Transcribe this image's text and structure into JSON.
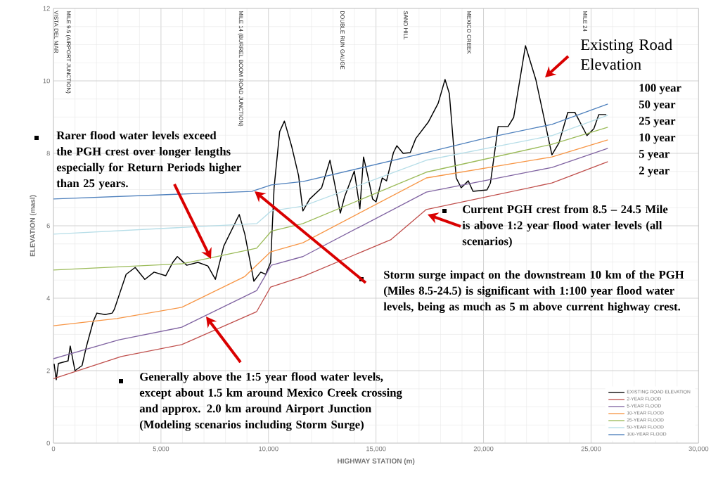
{
  "chart_data": {
    "type": "line",
    "xlabel": "HIGHWAY STATION (m)",
    "ylabel": "ELEVATION (masl)",
    "xlim": [
      0,
      30000
    ],
    "ylim": [
      0,
      12
    ],
    "xticks": [
      0,
      {
        "value": 5000,
        "label": "5,000"
      },
      {
        "value": 10000,
        "label": "10,000"
      },
      {
        "value": 15000,
        "label": "15,000"
      },
      {
        "value": 20000,
        "label": "20,000"
      },
      {
        "value": 25000,
        "label": "25,000"
      },
      {
        "value": 30000,
        "label": "30,000"
      }
    ],
    "yticks": [
      0,
      2,
      4,
      6,
      8,
      10,
      12
    ],
    "grid": true,
    "legend": "bottom right",
    "series": [
      {
        "name": "EXISTING ROAD ELEVATION",
        "color": "#000000",
        "x": [
          30,
          130,
          230,
          680,
          780,
          1000,
          1330,
          1530,
          1850,
          2020,
          2400,
          2730,
          2830,
          3050,
          3380,
          3800,
          4250,
          4680,
          5220,
          5550,
          5760,
          6200,
          6720,
          7180,
          7530,
          7920,
          8640,
          8900,
          9320,
          9640,
          9870,
          10100,
          10260,
          10520,
          10740,
          11070,
          11400,
          11600,
          11920,
          12470,
          12860,
          13180,
          13340,
          13540,
          13990,
          14250,
          14420,
          14640,
          14840,
          15000,
          15290,
          15490,
          15810,
          15970,
          16260,
          16590,
          16850,
          17440,
          17890,
          18210,
          18410,
          18730,
          18960,
          19290,
          19510,
          20160,
          20320,
          20680,
          21140,
          21400,
          21950,
          22430,
          23180,
          23510,
          23920,
          24250,
          24810,
          25130,
          25360,
          25710
        ],
        "values": [
          2.19,
          1.75,
          2.2,
          2.27,
          2.68,
          2.0,
          2.14,
          2.66,
          3.36,
          3.59,
          3.55,
          3.59,
          3.69,
          4.08,
          4.66,
          4.85,
          4.52,
          4.72,
          4.62,
          4.99,
          5.15,
          4.91,
          4.99,
          4.89,
          4.52,
          5.44,
          6.31,
          5.77,
          4.47,
          4.72,
          4.66,
          4.99,
          7.05,
          8.6,
          8.89,
          8.21,
          7.38,
          6.41,
          6.74,
          7.05,
          7.81,
          6.85,
          6.35,
          6.8,
          7.51,
          6.47,
          7.9,
          7.32,
          6.74,
          6.66,
          7.32,
          7.24,
          8.02,
          8.21,
          8.0,
          8.02,
          8.41,
          8.87,
          9.38,
          10.04,
          9.65,
          7.32,
          7.05,
          7.24,
          6.95,
          6.99,
          7.18,
          8.74,
          8.74,
          8.99,
          10.97,
          10.04,
          7.96,
          8.29,
          9.13,
          9.13,
          8.49,
          8.68,
          9.07,
          9.07
        ]
      },
      {
        "name": "2-YEAR FLOOD",
        "color": "#c0504d",
        "x": [
          0,
          3150,
          5970,
          9450,
          10100,
          11600,
          15700,
          17340,
          23180,
          25780
        ],
        "values": [
          1.78,
          2.39,
          2.72,
          3.63,
          4.31,
          4.6,
          5.62,
          6.45,
          7.18,
          7.77
        ]
      },
      {
        "name": "5-YEAR FLOOD",
        "color": "#8064a2",
        "x": [
          0,
          3050,
          5970,
          9450,
          10130,
          11600,
          17340,
          23180,
          25780
        ],
        "values": [
          2.33,
          2.85,
          3.2,
          4.21,
          4.91,
          5.15,
          6.93,
          7.61,
          8.14
        ]
      },
      {
        "name": "10-YEAR FLOOD",
        "color": "#f79646",
        "x": [
          0,
          2950,
          5970,
          8900,
          10100,
          11600,
          17340,
          23180,
          25780
        ],
        "values": [
          3.24,
          3.44,
          3.75,
          4.6,
          5.28,
          5.53,
          7.32,
          7.9,
          8.37
        ]
      },
      {
        "name": "25-YEAR FLOOD",
        "color": "#9bbb59",
        "x": [
          0,
          5970,
          9450,
          10130,
          11600,
          17340,
          23180,
          25780
        ],
        "values": [
          4.78,
          4.95,
          5.38,
          5.85,
          6.06,
          7.48,
          8.25,
          8.72
        ]
      },
      {
        "name": "50-YEAR FLOOD",
        "color": "#b7dee8",
        "x": [
          0,
          9450,
          10130,
          11600,
          17340,
          23180,
          25780
        ],
        "values": [
          5.77,
          6.06,
          6.41,
          6.54,
          7.81,
          8.49,
          9.05
        ]
      },
      {
        "name": "100-YEAR FLOOD",
        "color": "#4f81bd",
        "x": [
          0,
          9220,
          10130,
          11600,
          17340,
          20030,
          23180,
          25780
        ],
        "values": [
          6.74,
          6.95,
          7.13,
          7.22,
          8.02,
          8.41,
          8.8,
          9.36
        ]
      }
    ],
    "annotations": [
      "Existing Road Elevation",
      "100 year",
      "50 year",
      "25 year",
      "10 year",
      "5 year",
      "2 year",
      "Rarer flood water levels exceed the PGH crest over longer lengths especially for Return Periods higher than 25 years.",
      "Current PGH crest from 8.5 – 24.5 Mile is above 1:2 year flood water levels (all scenarios)",
      "Storm surge impact on the  downstream 10 km of the PGH (Miles 8.5-24.5) is significant with 1:100 year flood water levels, being as much as 5 m above current highway crest.",
      "Generally above the 1:5 year flood water levels, except about 1.5 km around Mexico Creek crossing and approx. 2.0 km around Airport Junction (Modeling scenarios including Storm Surge)",
      "VISTA DEL MAR",
      "MILE 9.5 (AIRPORT JUNCTION)",
      "MILE 14 (BURREL BOOM ROAD JUNCTION)",
      "DOUBLE RUN GAUGE",
      "SAND HILL",
      "MEXICO CREEK",
      "MILE 24"
    ]
  }
}
